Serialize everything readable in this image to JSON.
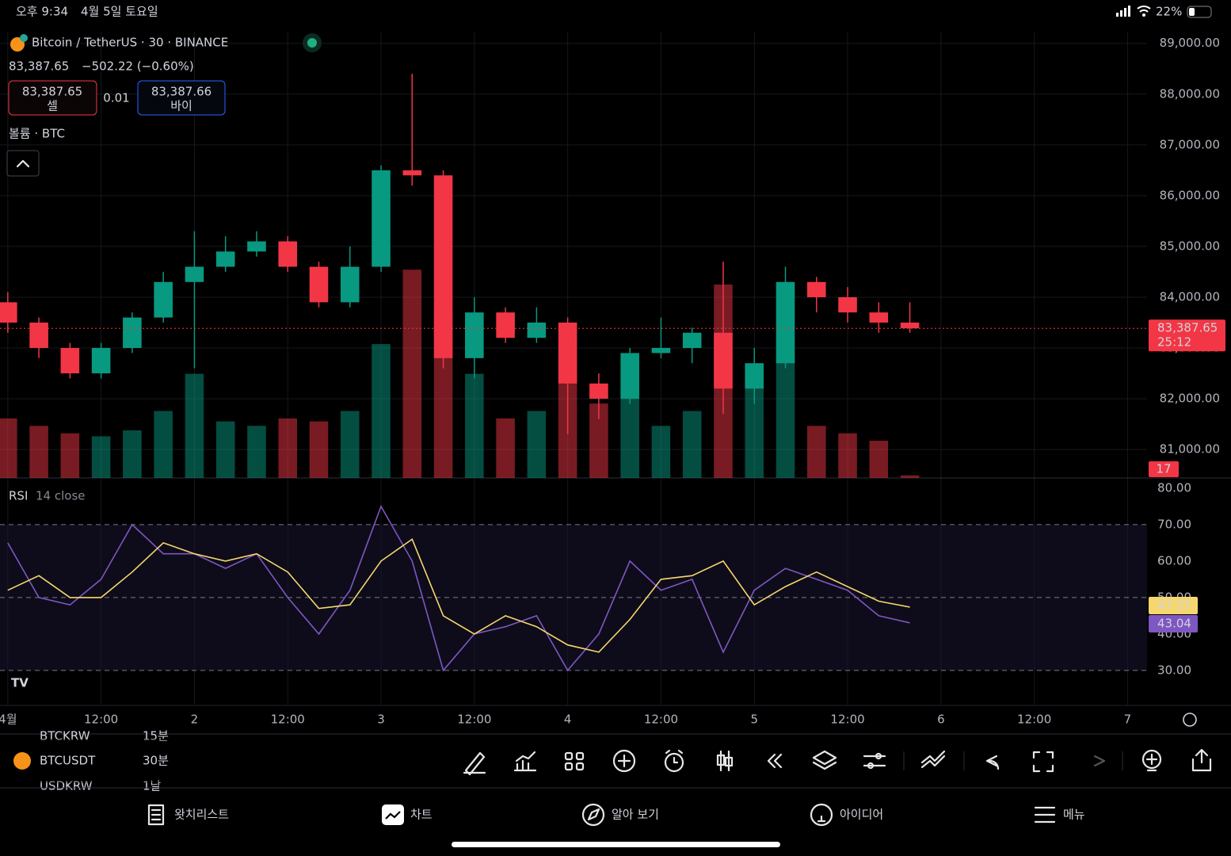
{
  "status_bar": {
    "time": "오후 9:34",
    "date": "4월 5일 토요일",
    "battery": "22%"
  },
  "header": {
    "symbol_title": "Bitcoin / TetherUS · 30 · BINANCE",
    "price": "83,387.65",
    "change": "−502.22 (−0.60%)",
    "sell_price": "83,387.65",
    "sell_label": "셀",
    "spread": "0.01",
    "buy_price": "83,387.66",
    "buy_label": "바이",
    "volume_title": "볼륨 · BTC"
  },
  "chart_data": [
    {
      "type": "candlestick",
      "up_color": "#089981",
      "down_color": "#f23645",
      "x": [
        0,
        4,
        8,
        12,
        16,
        20,
        24,
        28,
        32,
        36,
        40,
        44,
        48,
        52,
        56,
        60,
        64,
        68,
        72,
        76,
        80,
        84,
        88,
        92,
        96,
        100,
        104,
        108,
        112,
        116
      ],
      "open": [
        83900,
        83500,
        83000,
        82500,
        83000,
        83600,
        84300,
        84600,
        84900,
        85100,
        84600,
        83900,
        84600,
        86500,
        86400,
        82800,
        83700,
        83200,
        83500,
        82300,
        82000,
        82900,
        83000,
        83300,
        82200,
        82700,
        84300,
        84000,
        83700,
        83500
      ],
      "high": [
        84100,
        83600,
        83100,
        83100,
        83700,
        84500,
        85300,
        85200,
        85300,
        85200,
        84700,
        85000,
        86600,
        88400,
        86500,
        84000,
        83800,
        83800,
        83600,
        82500,
        83000,
        83600,
        83400,
        84700,
        83000,
        84600,
        84400,
        84200,
        83900,
        83900
      ],
      "low": [
        83300,
        82800,
        82400,
        82400,
        82900,
        83500,
        82600,
        84500,
        84800,
        84500,
        83800,
        83800,
        84500,
        86200,
        82600,
        82400,
        83100,
        83100,
        81300,
        81600,
        81900,
        82800,
        82700,
        81700,
        81900,
        82600,
        83700,
        83500,
        83300,
        83300
      ],
      "close": [
        83500,
        83000,
        82500,
        83000,
        83600,
        84300,
        84600,
        84900,
        85100,
        84600,
        83900,
        84600,
        86500,
        86400,
        82800,
        83700,
        83200,
        83500,
        82300,
        82000,
        82900,
        83000,
        83300,
        82200,
        82700,
        84300,
        84000,
        83700,
        83500,
        83387.65
      ],
      "volume": [
        400,
        350,
        300,
        280,
        320,
        450,
        700,
        380,
        350,
        400,
        380,
        450,
        900,
        1400,
        1100,
        700,
        400,
        450,
        800,
        500,
        600,
        350,
        450,
        1300,
        700,
        800,
        350,
        300,
        250,
        17
      ],
      "volume_ylim": [
        0,
        3000
      ],
      "countdown": "25:12",
      "xlim": [
        -1,
        146.5
      ],
      "xticks": [
        {
          "value": 0,
          "label": "4월"
        },
        {
          "value": 12,
          "label": "12:00"
        },
        {
          "value": 24,
          "label": "2"
        },
        {
          "value": 36,
          "label": "12:00"
        },
        {
          "value": 48,
          "label": "3"
        },
        {
          "value": 60,
          "label": "12:00"
        },
        {
          "value": 72,
          "label": "4"
        },
        {
          "value": 84,
          "label": "12:00"
        },
        {
          "value": 96,
          "label": "5"
        },
        {
          "value": 108,
          "label": "12:00"
        },
        {
          "value": 120,
          "label": "6"
        },
        {
          "value": 132,
          "label": "12:00"
        },
        {
          "value": 144,
          "label": "7"
        }
      ],
      "ylim": [
        80440,
        89230
      ],
      "yticks": [
        {
          "value": 81000,
          "label": "81,000.00"
        },
        {
          "value": 82000,
          "label": "82,000.00"
        },
        {
          "value": 83000,
          "label": "83,000.00"
        },
        {
          "value": 84000,
          "label": "84,000.00"
        },
        {
          "value": 85000,
          "label": "85,000.00"
        },
        {
          "value": 86000,
          "label": "86,000.00"
        },
        {
          "value": 87000,
          "label": "87,000.00"
        },
        {
          "value": 88000,
          "label": "88,000.00"
        },
        {
          "value": 89000,
          "label": "89,000.00"
        }
      ],
      "grid": true
    },
    {
      "type": "line",
      "title": "RSI",
      "subtitle": "14 close",
      "x": [
        0,
        4,
        8,
        12,
        16,
        20,
        24,
        28,
        32,
        36,
        40,
        44,
        48,
        52,
        56,
        60,
        64,
        68,
        72,
        76,
        80,
        84,
        88,
        92,
        96,
        100,
        104,
        108,
        112,
        116
      ],
      "series": [
        {
          "color": "#7e57c2",
          "values": [
            65,
            50,
            48,
            55,
            70,
            62,
            62,
            58,
            62,
            50,
            40,
            52,
            75,
            60,
            30,
            40,
            42,
            45,
            30,
            40,
            60,
            52,
            55,
            35,
            52,
            58,
            55,
            52,
            45,
            43.04
          ]
        },
        {
          "color": "#f5d76e",
          "values": [
            52,
            56,
            50,
            50,
            57,
            65,
            62,
            60,
            62,
            57,
            47,
            48,
            60,
            66,
            45,
            40,
            45,
            42,
            37,
            35,
            44,
            55,
            56,
            60,
            48,
            53,
            57,
            53,
            49,
            47.37
          ]
        }
      ],
      "levels": [
        70,
        50,
        30
      ],
      "xlim": [
        -1,
        146.5
      ],
      "ylim": [
        20.4,
        82.8
      ],
      "yticks": [
        {
          "value": 30,
          "label": "30.00"
        },
        {
          "value": 40,
          "label": "40.00"
        },
        {
          "value": 50,
          "label": "50.00"
        },
        {
          "value": 60,
          "label": "60.00"
        },
        {
          "value": 70,
          "label": "70.00"
        },
        {
          "value": 80,
          "label": "80.00"
        }
      ]
    }
  ],
  "toolbar": {
    "symbol": "BTCUSDT",
    "interval": "30분",
    "ghost_symbol_1": "BTCKRW",
    "ghost_interval_1": "15분",
    "ghost_symbol_2": "USDKRW",
    "ghost_interval_2": "1날"
  },
  "tabs": [
    "왓치리스트",
    "차트",
    "알아 보기",
    "아이디어",
    "메뉴"
  ]
}
